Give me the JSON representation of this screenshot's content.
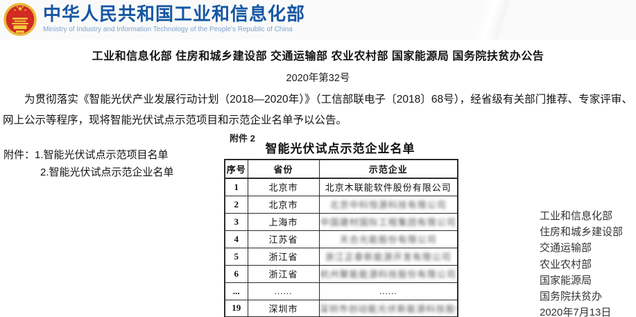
{
  "header": {
    "ministry_cn": "中华人民共和国工业和信息化部",
    "ministry_en": "Ministry of Industry and Information Technology of the People's Republic of China"
  },
  "document": {
    "title": "工业和信息化部 住房和城乡建设部 交通运输部 农业农村部 国家能源局 国务院扶贫办公告",
    "number": "2020年第32号",
    "body": "为贯彻落实《智能光伏产业发展行动计划（2018—2020年）》（工信部联电子〔2018〕68号），经省级有关部门推荐、专家评审、网上公示等程序，现将智能光伏试点示范项目和示范企业名单予以公告。",
    "attachments_label": "附件：",
    "attachments": [
      "1.智能光伏试点示范项目名单",
      "2.智能光伏试点示范企业名单"
    ]
  },
  "annex": {
    "label": "附件 2",
    "table_title": "智能光伏试点示范企业名单",
    "table": {
      "headers": [
        "序号",
        "省份",
        "示范企业"
      ],
      "rows": [
        {
          "no": "1",
          "province": "北京市",
          "company": "北京木联能软件股份有限公司",
          "blurred": false
        },
        {
          "no": "2",
          "province": "北京市",
          "company": "北京中科恒源科技有限公司",
          "blurred": true
        },
        {
          "no": "3",
          "province": "上海市",
          "company": "中国建材国际工程集团有限公司",
          "blurred": true
        },
        {
          "no": "4",
          "province": "江苏省",
          "company": "天合光能股份有限公司",
          "blurred": true
        },
        {
          "no": "5",
          "province": "浙江省",
          "company": "浙江正泰新能源开发有限公司",
          "blurred": true
        },
        {
          "no": "6",
          "province": "浙江省",
          "company": "杭州聚能能源科技股份有限公司",
          "blurred": true
        },
        {
          "no": "...",
          "province": "......",
          "company": "......",
          "blurred": false
        },
        {
          "no": "19",
          "province": "深圳市",
          "company": "深圳市创动能光伏新能源科技股份有限公司",
          "blurred": true
        }
      ]
    }
  },
  "signature": {
    "agencies": [
      "工业和信息化部",
      "住房和城乡建设部",
      "交通运输部",
      "农业农村部",
      "国家能源局",
      "国务院扶贫办"
    ],
    "date": "2020年7月13日"
  },
  "colors": {
    "brand_blue": "#1557a3",
    "brand_blue_light": "#7ba3cf",
    "emblem_red": "#d02a21",
    "emblem_gold": "#f0c339"
  }
}
